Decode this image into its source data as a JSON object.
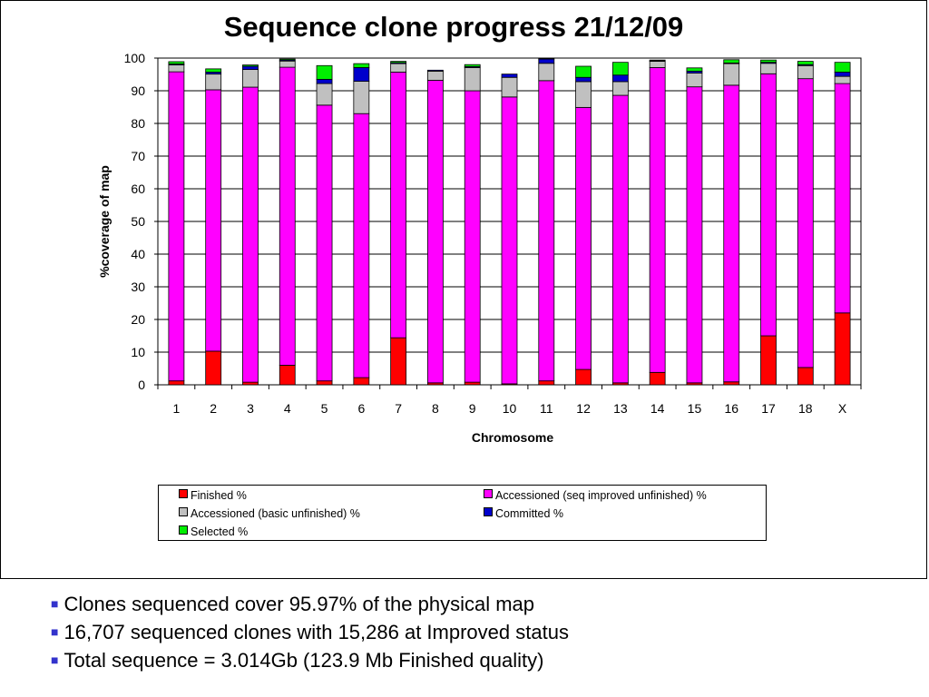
{
  "chart_data": {
    "type": "bar",
    "stacked": true,
    "title": "Sequence clone progress 21/12/09",
    "xlabel": "Chromosome",
    "ylabel": "%coverage of map",
    "ylim": [
      0,
      100
    ],
    "yticks": [
      0,
      10,
      20,
      30,
      40,
      50,
      60,
      70,
      80,
      90,
      100
    ],
    "legend_position": "bottom",
    "categories": [
      "1",
      "2",
      "3",
      "4",
      "5",
      "6",
      "7",
      "8",
      "9",
      "10",
      "11",
      "12",
      "13",
      "14",
      "15",
      "16",
      "17",
      "18",
      "X"
    ],
    "series": [
      {
        "name": "Finished %",
        "color": "#ff0000",
        "values": [
          1.2,
          10.3,
          0.8,
          6.0,
          1.2,
          2.2,
          14.4,
          0.6,
          0.8,
          0.3,
          1.2,
          4.7,
          0.6,
          3.8,
          0.6,
          0.9,
          15.0,
          5.3,
          22.0
        ]
      },
      {
        "name": "Accessioned (seq improved unfinished) %",
        "color": "#ff00ff",
        "values": [
          94.6,
          80.0,
          90.3,
          91.2,
          84.4,
          80.8,
          81.3,
          92.6,
          89.2,
          87.8,
          91.9,
          80.2,
          88.0,
          93.3,
          90.6,
          90.8,
          80.2,
          88.4,
          70.2
        ]
      },
      {
        "name": "Accessioned (basic unfinished) %",
        "color": "#c0c0c0",
        "values": [
          2.1,
          4.8,
          5.4,
          1.9,
          6.6,
          9.9,
          2.6,
          2.8,
          7.1,
          6.0,
          5.3,
          7.9,
          4.2,
          1.9,
          4.2,
          6.6,
          3.2,
          4.0,
          2.2
        ]
      },
      {
        "name": "Committed %",
        "color": "#0000cc",
        "values": [
          0.3,
          0.6,
          1.0,
          0.3,
          1.3,
          4.2,
          0.3,
          0.3,
          0.3,
          1.0,
          1.3,
          1.3,
          2.0,
          0.2,
          0.6,
          0.2,
          0.3,
          0.3,
          1.3
        ]
      },
      {
        "name": "Selected %",
        "color": "#00ee00",
        "values": [
          0.7,
          1.0,
          0.4,
          0.3,
          4.2,
          1.2,
          0.4,
          0.0,
          0.6,
          0.0,
          0.2,
          3.4,
          3.9,
          0.2,
          1.0,
          1.0,
          0.7,
          1.0,
          3.0
        ]
      }
    ]
  },
  "notes": [
    "Clones sequenced cover 95.97% of the physical map",
    "16,707 sequenced clones with 15,286 at Improved status",
    "Total sequence = 3.014Gb (123.9 Mb Finished quality)"
  ]
}
